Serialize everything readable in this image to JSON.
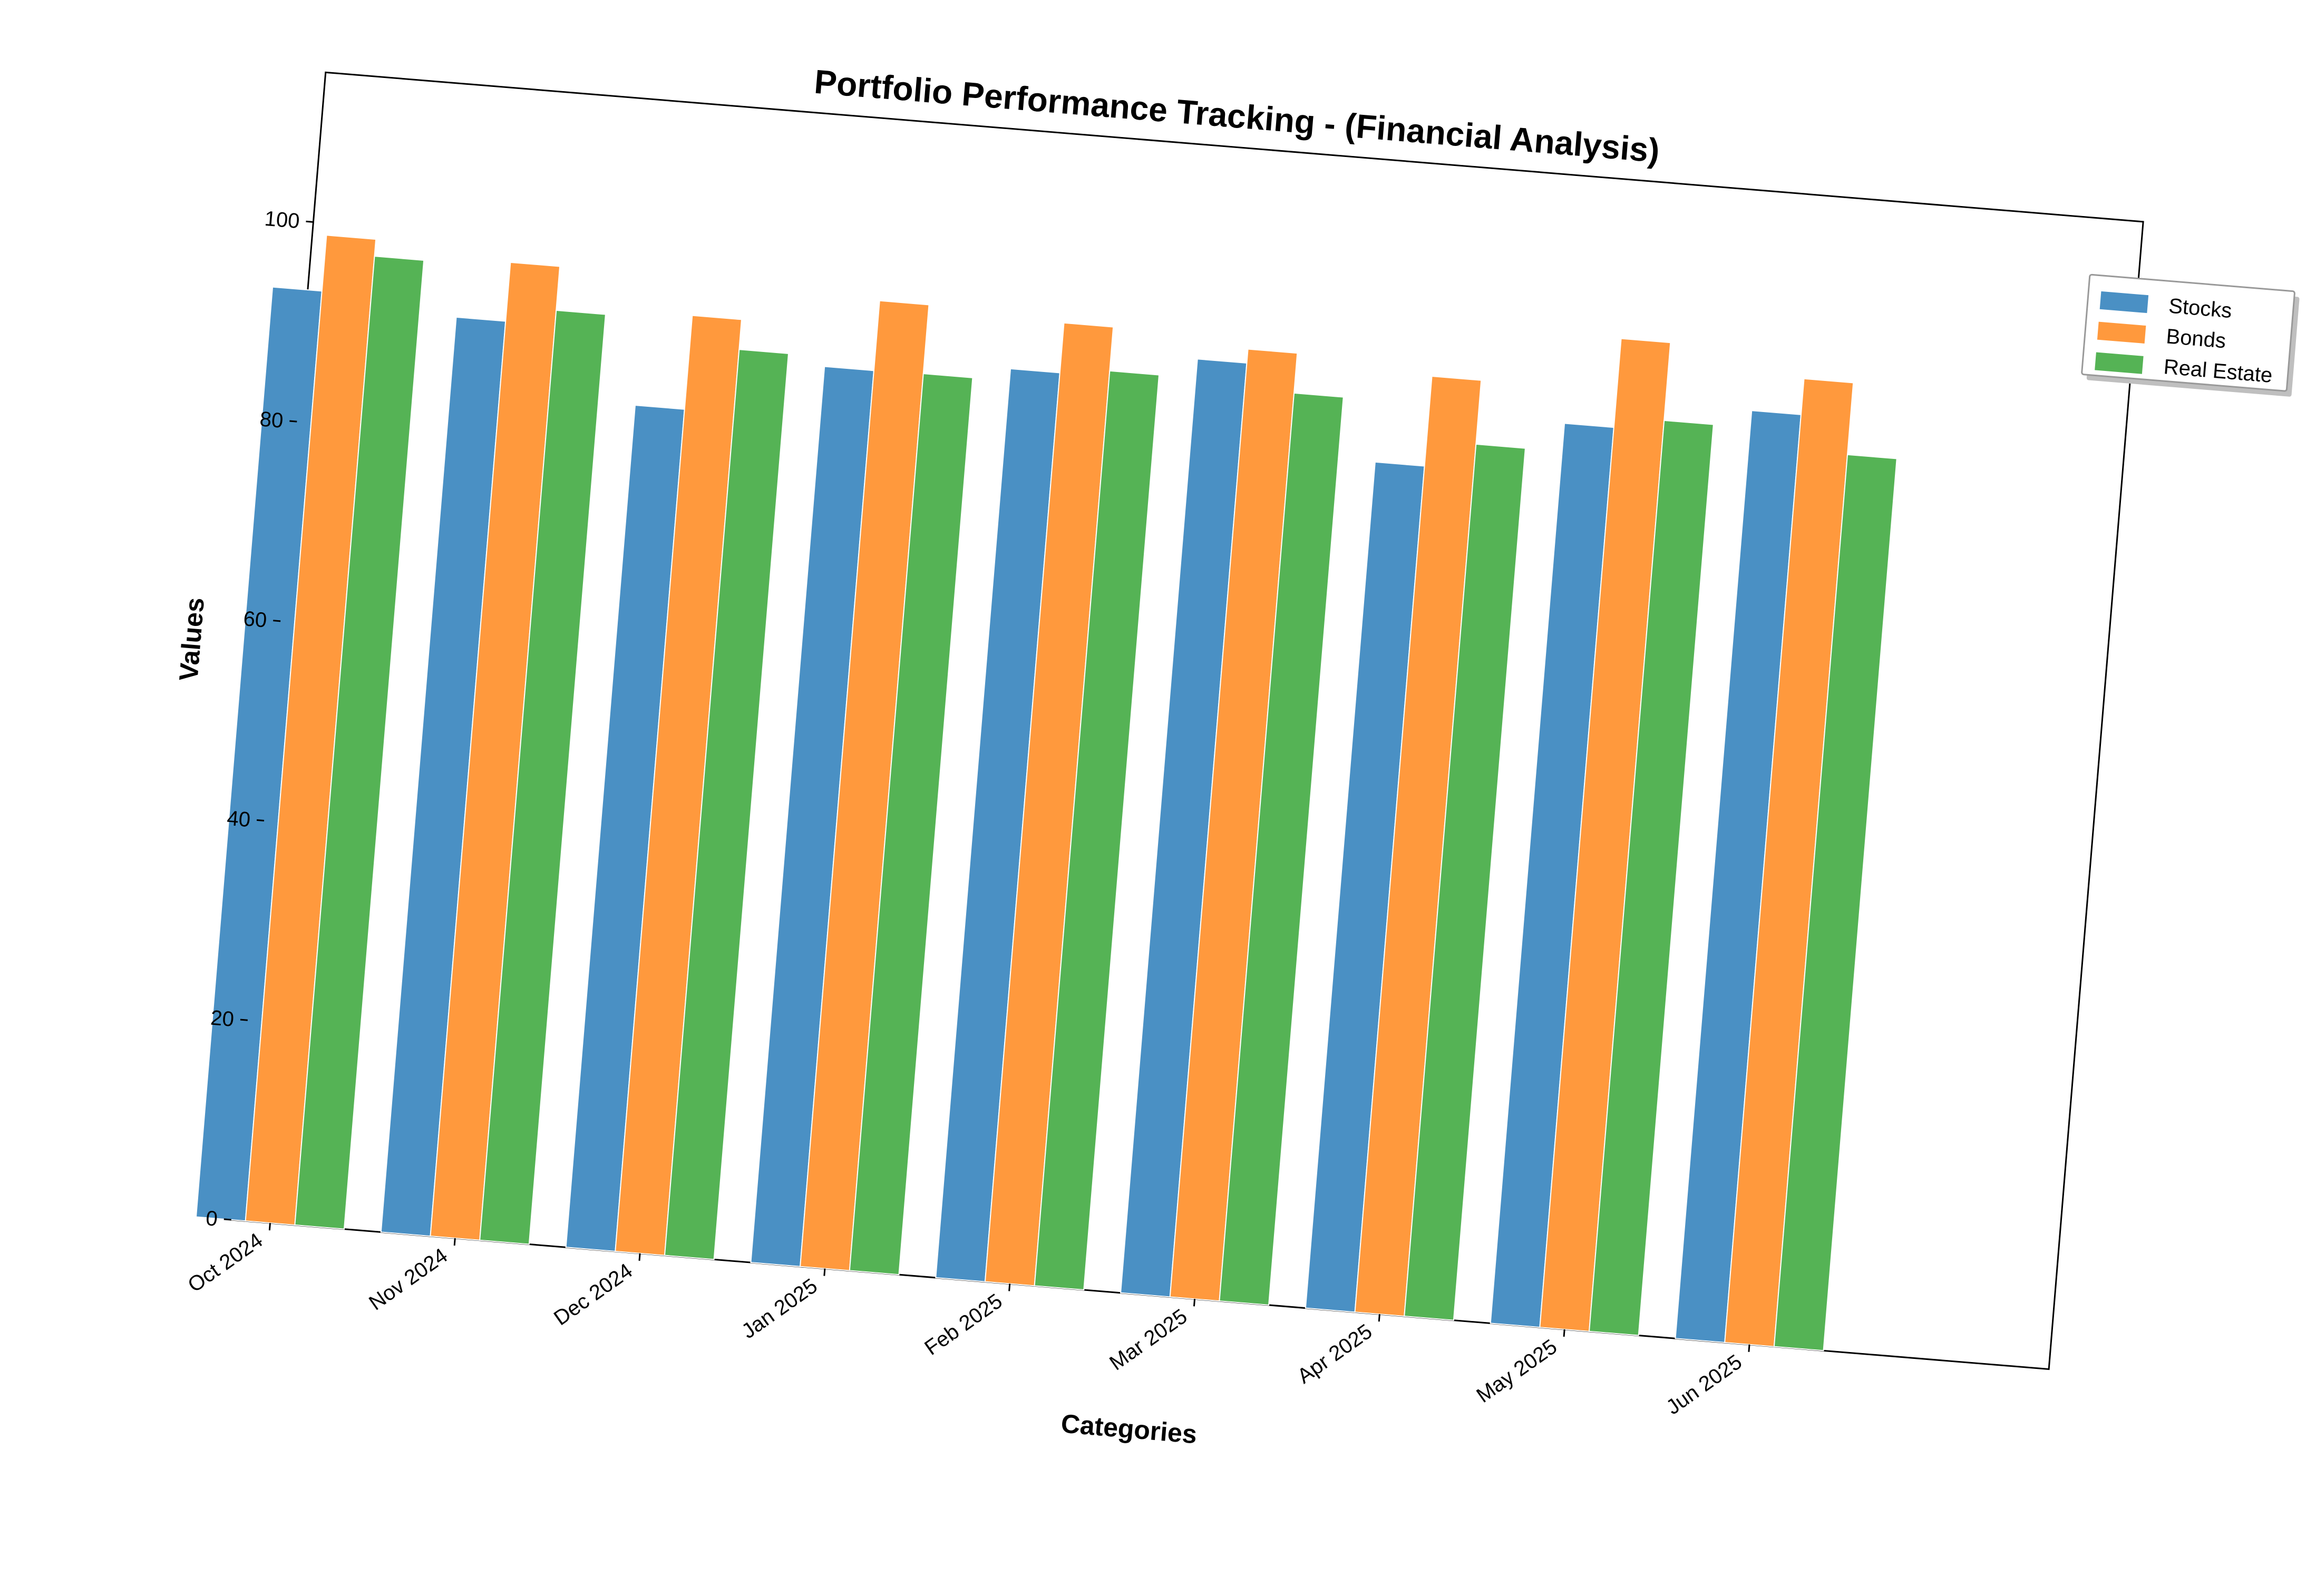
{
  "chart_data": {
    "type": "bar",
    "title": "Portfolio Performance Tracking - (Financial Analysis)",
    "xlabel": "Categories",
    "ylabel": "Values",
    "categories": [
      "Oct 2024",
      "Nov 2024",
      "Dec 2024",
      "Jan 2025",
      "Feb 2025",
      "Mar 2025",
      "Apr 2025",
      "May 2025",
      "Jun 2025"
    ],
    "series": [
      {
        "name": "Stocks",
        "color": "#4a90c4",
        "values": [
          93.2,
          91.7,
          84.4,
          89.8,
          91.1,
          93.6,
          84.8,
          90.2,
          93.0
        ]
      },
      {
        "name": "Bonds",
        "color": "#ff993d",
        "values": [
          98.8,
          97.6,
          93.8,
          96.8,
          96.1,
          95.0,
          93.8,
          99.1,
          96.6
        ]
      },
      {
        "name": "Real Estate",
        "color": "#55b355",
        "values": [
          97.1,
          93.2,
          90.8,
          89.9,
          91.7,
          91.0,
          87.4,
          91.3,
          89.4
        ]
      }
    ],
    "yticks": [
      0,
      20,
      40,
      60,
      80,
      100
    ],
    "ylim": [
      0,
      115
    ],
    "grid": false,
    "legend_position": "top-right, outside plot"
  }
}
